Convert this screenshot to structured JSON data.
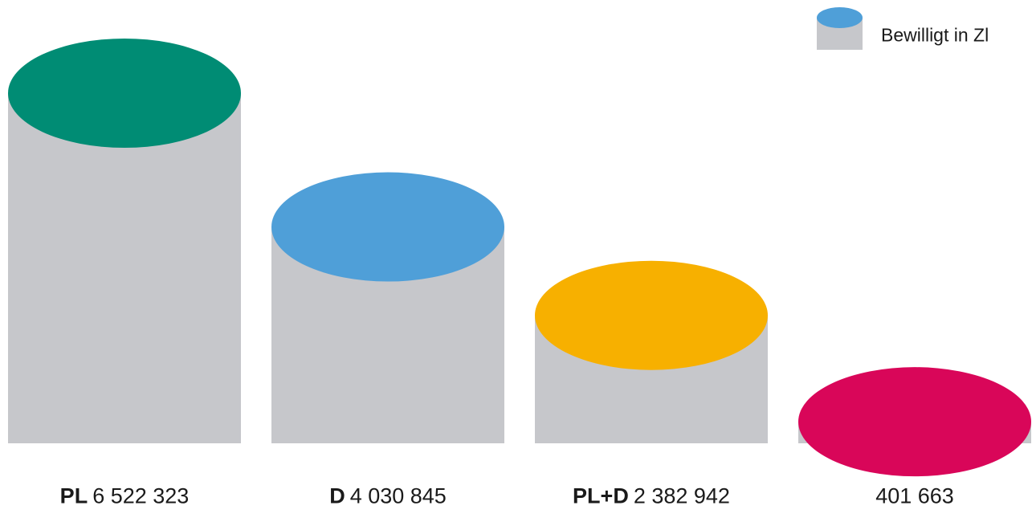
{
  "chart_data": {
    "type": "bar",
    "style": "cylinder",
    "categories": [
      "PL",
      "D",
      "PL+D",
      ""
    ],
    "values": [
      6522323,
      4030845,
      2382942,
      401663
    ],
    "value_labels": [
      "6 522 323",
      "4 030 845",
      "2 382 942",
      "401 663"
    ],
    "colors": [
      "#008c74",
      "#4f9fd8",
      "#f7b000",
      "#d90659"
    ],
    "body_color": "#c6c7cb",
    "legend": {
      "label": "Bewilligt in Zl",
      "placement": "top-right",
      "swatch_top_color": "#4f9fd8",
      "swatch_body_color": "#c6c7cb"
    }
  }
}
